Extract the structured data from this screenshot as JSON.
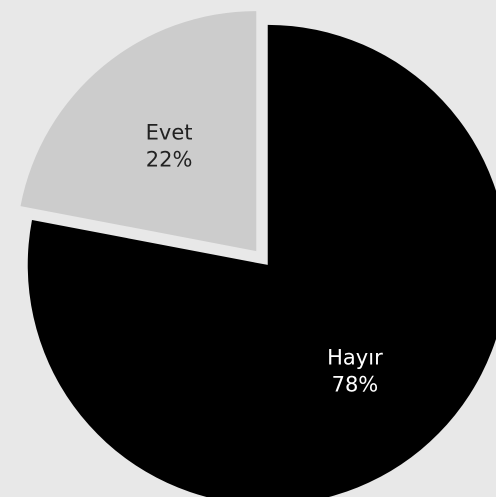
{
  "chart_data": {
    "type": "pie",
    "slices": [
      {
        "label": "Evet",
        "value": 22,
        "percent_label": "22%",
        "color": "#cccccc",
        "text_color": "#222222"
      },
      {
        "label": "Hayır",
        "value": 78,
        "percent_label": "78%",
        "color": "#000000",
        "text_color": "#ffffff"
      }
    ],
    "background": "#e8e8e8",
    "legend": "none",
    "exploded": true
  }
}
